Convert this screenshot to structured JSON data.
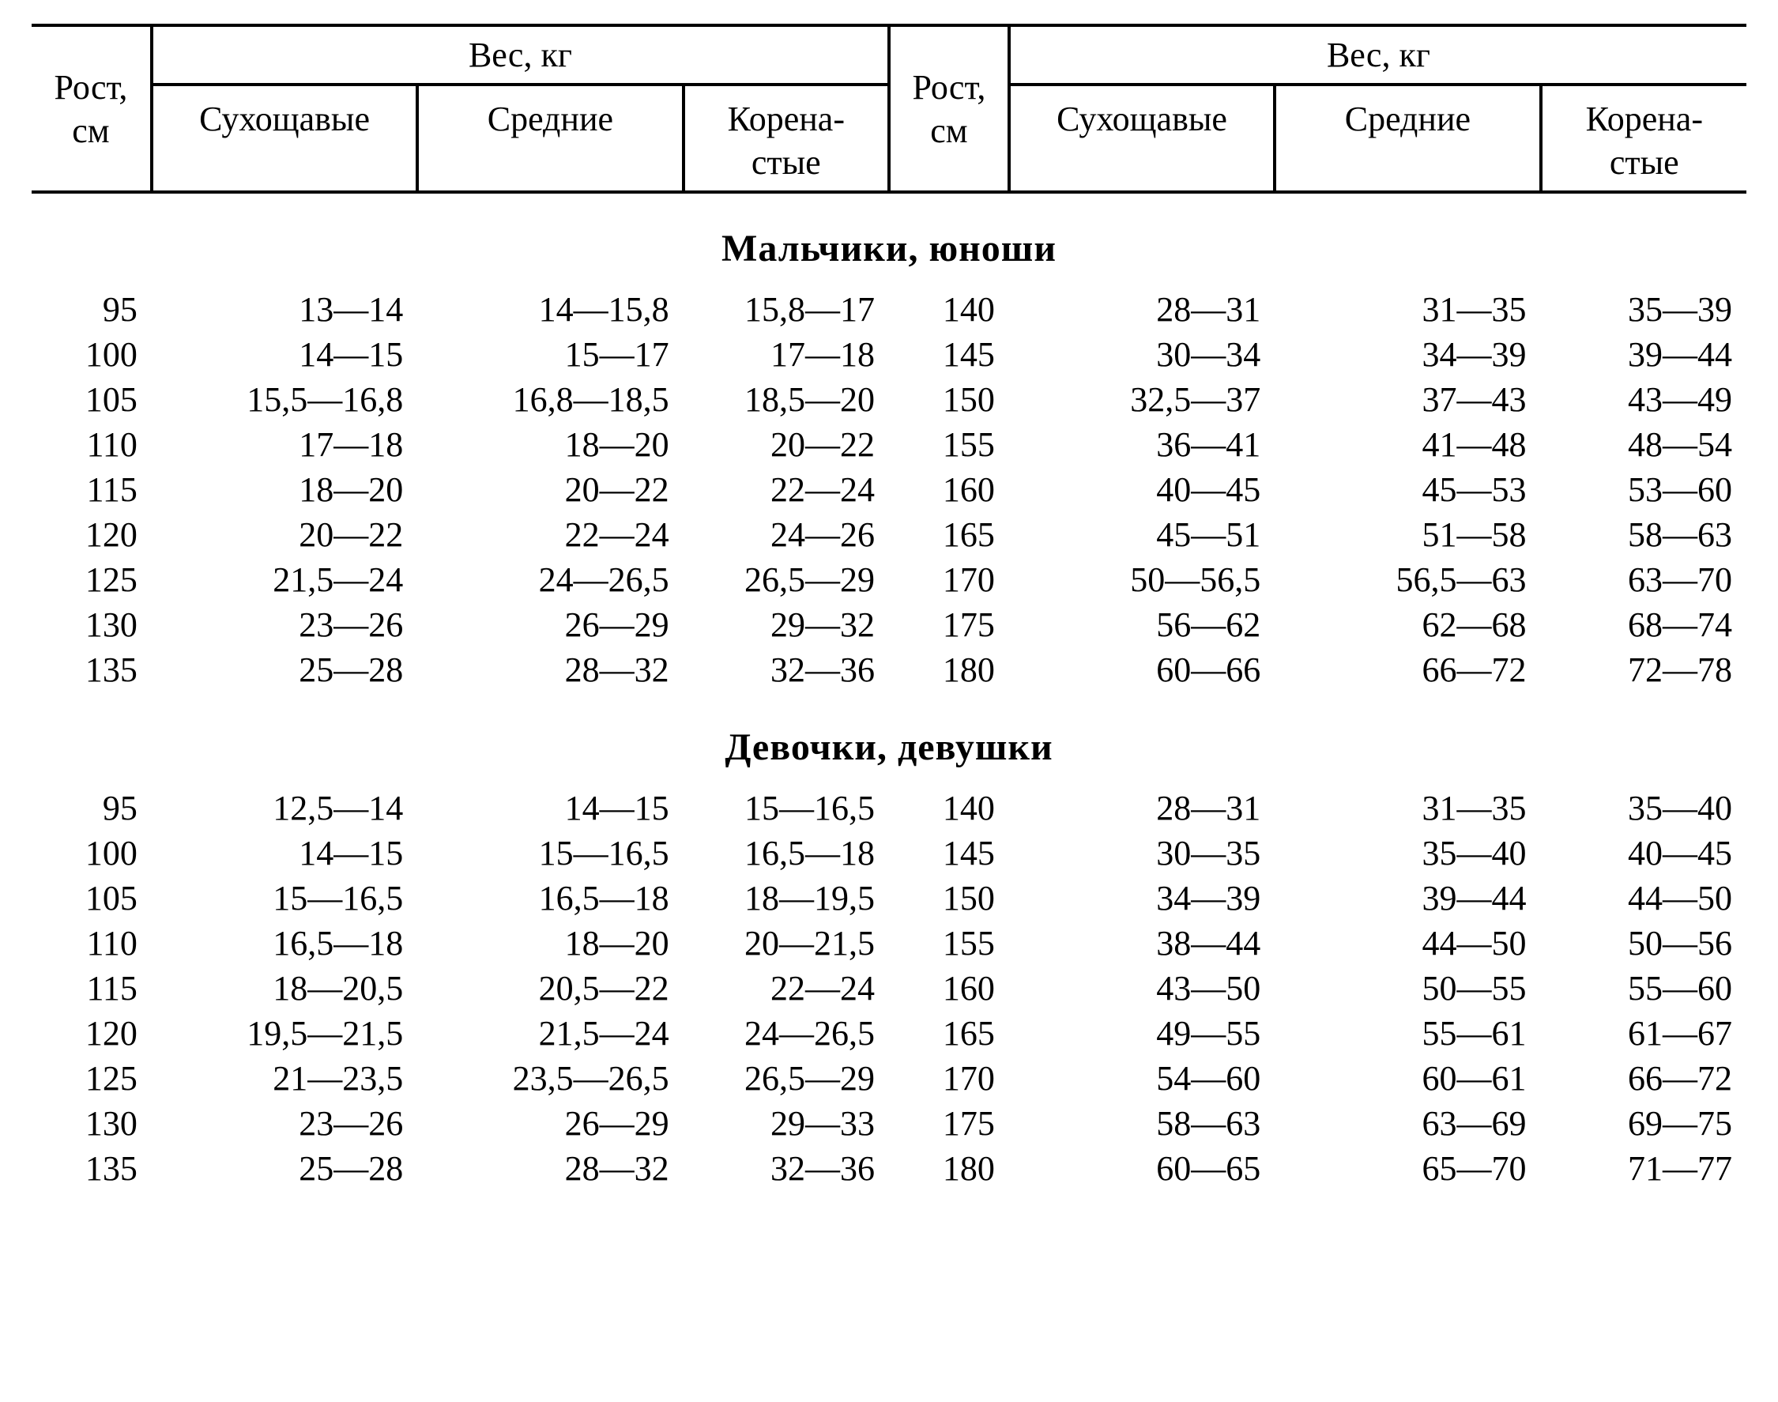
{
  "type": "table",
  "background_color": "#ffffff",
  "text_color": "#000000",
  "border_color": "#000000",
  "font_family": "Times New Roman",
  "body_fontsize_pt": 33,
  "section_title_fontsize_pt": 36,
  "columns_structure": [
    "Рост, см",
    "Сухощавые",
    "Средние",
    "Коренастые",
    "Рост, см",
    "Сухощавые",
    "Средние",
    "Коренастые"
  ],
  "header": {
    "height_label_line1": "Рост,",
    "height_label_line2": "см",
    "weight_group": "Вес, кг",
    "slim": "Сухощавые",
    "medium": "Средние",
    "stocky_line1": "Корена-",
    "stocky_line2": "стые"
  },
  "sections": {
    "boys": {
      "title": "Мальчики, юноши",
      "rows": [
        {
          "h1": "95",
          "s1": "13—14",
          "m1": "14—15,8",
          "k1": "15,8—17",
          "h2": "140",
          "s2": "28—31",
          "m2": "31—35",
          "k2": "35—39"
        },
        {
          "h1": "100",
          "s1": "14—15",
          "m1": "15—17",
          "k1": "17—18",
          "h2": "145",
          "s2": "30—34",
          "m2": "34—39",
          "k2": "39—44"
        },
        {
          "h1": "105",
          "s1": "15,5—16,8",
          "m1": "16,8—18,5",
          "k1": "18,5—20",
          "h2": "150",
          "s2": "32,5—37",
          "m2": "37—43",
          "k2": "43—49"
        },
        {
          "h1": "110",
          "s1": "17—18",
          "m1": "18—20",
          "k1": "20—22",
          "h2": "155",
          "s2": "36—41",
          "m2": "41—48",
          "k2": "48—54"
        },
        {
          "h1": "115",
          "s1": "18—20",
          "m1": "20—22",
          "k1": "22—24",
          "h2": "160",
          "s2": "40—45",
          "m2": "45—53",
          "k2": "53—60"
        },
        {
          "h1": "120",
          "s1": "20—22",
          "m1": "22—24",
          "k1": "24—26",
          "h2": "165",
          "s2": "45—51",
          "m2": "51—58",
          "k2": "58—63"
        },
        {
          "h1": "125",
          "s1": "21,5—24",
          "m1": "24—26,5",
          "k1": "26,5—29",
          "h2": "170",
          "s2": "50—56,5",
          "m2": "56,5—63",
          "k2": "63—70"
        },
        {
          "h1": "130",
          "s1": "23—26",
          "m1": "26—29",
          "k1": "29—32",
          "h2": "175",
          "s2": "56—62",
          "m2": "62—68",
          "k2": "68—74"
        },
        {
          "h1": "135",
          "s1": "25—28",
          "m1": "28—32",
          "k1": "32—36",
          "h2": "180",
          "s2": "60—66",
          "m2": "66—72",
          "k2": "72—78"
        }
      ]
    },
    "girls": {
      "title": "Девочки, девушки",
      "rows": [
        {
          "h1": "95",
          "s1": "12,5—14",
          "m1": "14—15",
          "k1": "15—16,5",
          "h2": "140",
          "s2": "28—31",
          "m2": "31—35",
          "k2": "35—40"
        },
        {
          "h1": "100",
          "s1": "14—15",
          "m1": "15—16,5",
          "k1": "16,5—18",
          "h2": "145",
          "s2": "30—35",
          "m2": "35—40",
          "k2": "40—45"
        },
        {
          "h1": "105",
          "s1": "15—16,5",
          "m1": "16,5—18",
          "k1": "18—19,5",
          "h2": "150",
          "s2": "34—39",
          "m2": "39—44",
          "k2": "44—50"
        },
        {
          "h1": "110",
          "s1": "16,5—18",
          "m1": "18—20",
          "k1": "20—21,5",
          "h2": "155",
          "s2": "38—44",
          "m2": "44—50",
          "k2": "50—56"
        },
        {
          "h1": "115",
          "s1": "18—20,5",
          "m1": "20,5—22",
          "k1": "22—24",
          "h2": "160",
          "s2": "43—50",
          "m2": "50—55",
          "k2": "55—60"
        },
        {
          "h1": "120",
          "s1": "19,5—21,5",
          "m1": "21,5—24",
          "k1": "24—26,5",
          "h2": "165",
          "s2": "49—55",
          "m2": "55—61",
          "k2": "61—67"
        },
        {
          "h1": "125",
          "s1": "21—23,5",
          "m1": "23,5—26,5",
          "k1": "26,5—29",
          "h2": "170",
          "s2": "54—60",
          "m2": "60—61",
          "k2": "66—72"
        },
        {
          "h1": "130",
          "s1": "23—26",
          "m1": "26—29",
          "k1": "29—33",
          "h2": "175",
          "s2": "58—63",
          "m2": "63—69",
          "k2": "69—75"
        },
        {
          "h1": "135",
          "s1": "25—28",
          "m1": "28—32",
          "k1": "32—36",
          "h2": "180",
          "s2": "60—65",
          "m2": "65—70",
          "k2": "71—77"
        }
      ]
    }
  }
}
